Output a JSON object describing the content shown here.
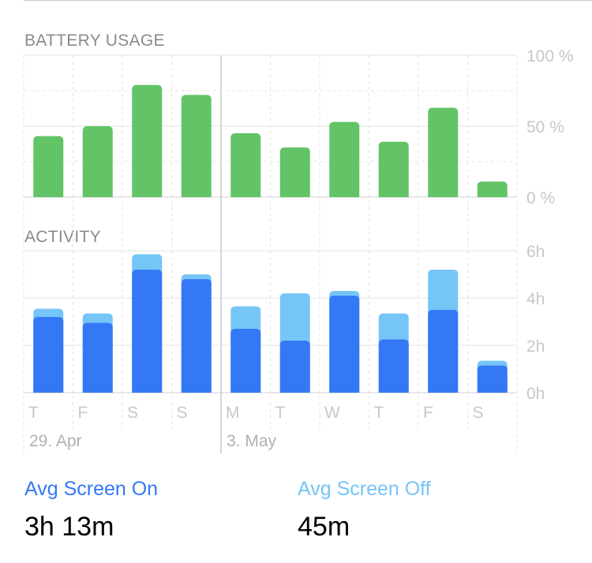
{
  "chart_data": [
    {
      "type": "bar",
      "title": "BATTERY USAGE",
      "categories": [
        "T",
        "F",
        "S",
        "S",
        "M",
        "T",
        "W",
        "T",
        "F",
        "S"
      ],
      "values": [
        43,
        50,
        79,
        72,
        45,
        35,
        53,
        39,
        63,
        11
      ],
      "ylim": [
        0,
        100
      ],
      "yticks": [
        "100 %",
        "50 %",
        "0 %"
      ],
      "color": "#62c466"
    },
    {
      "type": "bar",
      "title": "ACTIVITY",
      "stacked": true,
      "categories": [
        "T",
        "F",
        "S",
        "S",
        "M",
        "T",
        "W",
        "T",
        "F",
        "S"
      ],
      "series": [
        {
          "values": [
            3.2,
            2.95,
            5.2,
            4.8,
            2.7,
            2.2,
            4.1,
            2.25,
            3.5,
            1.15
          ],
          "color": "#3478f6"
        },
        {
          "values": [
            0.35,
            0.4,
            0.65,
            0.2,
            0.95,
            2.0,
            0.2,
            1.1,
            1.7,
            0.2
          ],
          "color": "#76c5f7"
        }
      ],
      "ylim": [
        0,
        6
      ],
      "yticks": [
        "6h",
        "4h",
        "2h",
        "0h"
      ],
      "date_labels": [
        "29. Apr",
        "3. May"
      ]
    }
  ],
  "summary": {
    "screen_on_label": "Avg Screen On",
    "screen_on_value": "3h 13m",
    "screen_off_label": "Avg Screen Off",
    "screen_off_value": "45m"
  },
  "colors": {
    "screen_on": "#3478f6",
    "screen_off": "#76c5f7",
    "battery": "#62c466"
  }
}
